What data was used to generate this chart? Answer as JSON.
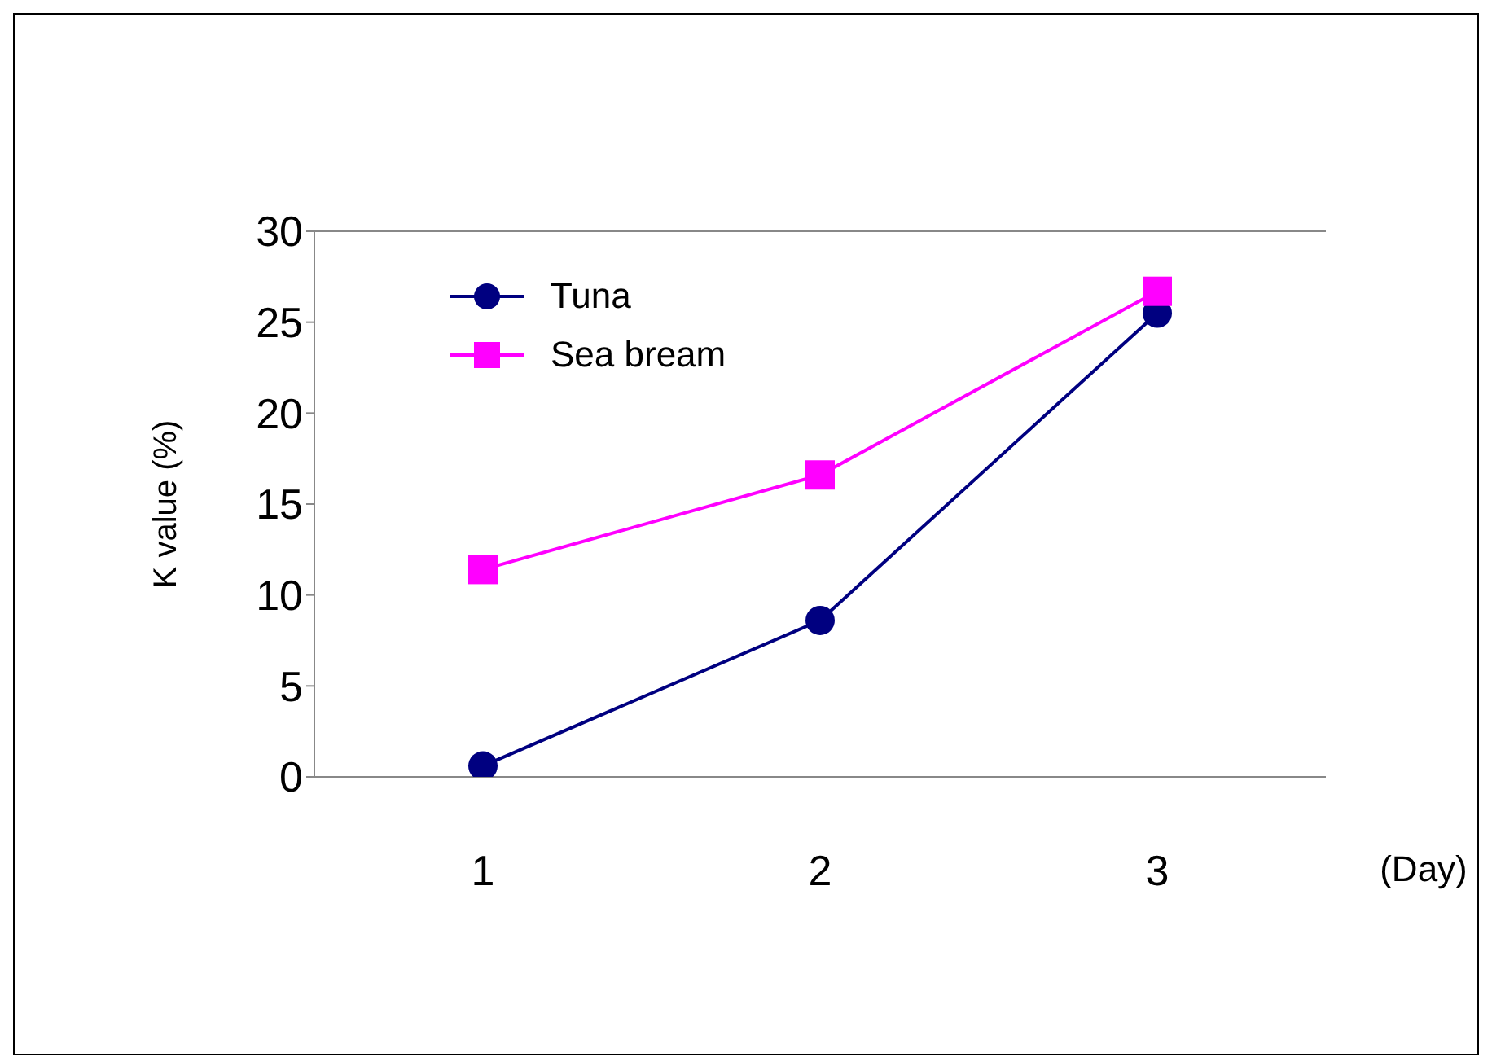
{
  "chart_data": {
    "type": "line",
    "xlabel": "(Day)",
    "ylabel": "K value (%)",
    "categories": [
      "1",
      "2",
      "3"
    ],
    "series": [
      {
        "name": "Tuna",
        "color": "#000080",
        "marker": "circle",
        "values": [
          0.6,
          8.6,
          25.5
        ]
      },
      {
        "name": "Sea bream",
        "color": "#ff00ff",
        "marker": "square",
        "values": [
          11.4,
          16.6,
          26.7
        ]
      }
    ],
    "ylim": [
      0,
      30
    ],
    "yticks": [
      0,
      5,
      10,
      15,
      20,
      25,
      30
    ],
    "legend": "top left"
  }
}
